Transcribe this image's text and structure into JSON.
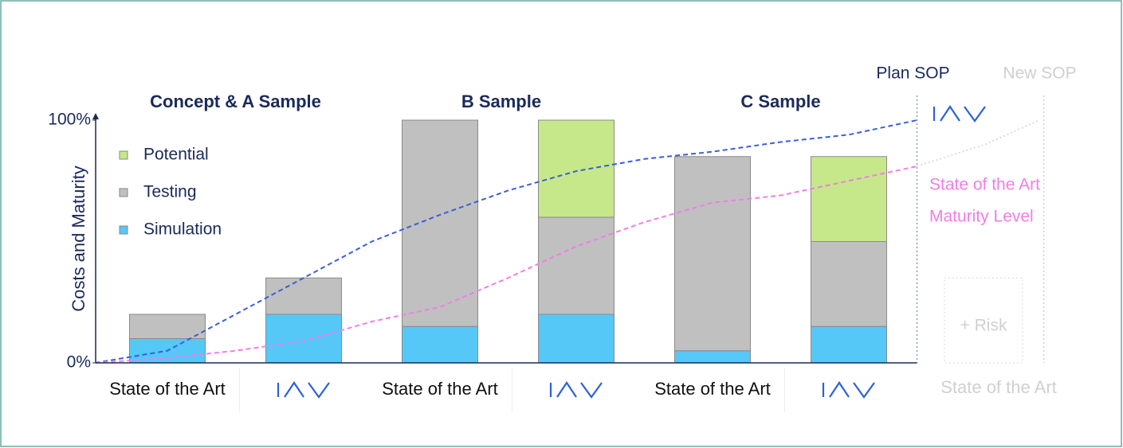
{
  "chart_data": {
    "type": "stacked_bar",
    "ylabel": "Costs and Maturity",
    "ylim": [
      0,
      100
    ],
    "yticks": [
      {
        "value": 0,
        "label": "0%"
      },
      {
        "value": 100,
        "label": "100%"
      }
    ],
    "categories": [
      "State of the Art",
      null,
      "State of the Art",
      null,
      "State of the Art",
      null
    ],
    "series": [
      {
        "name": "Simulation",
        "color": "#55c8f8",
        "values": [
          10,
          20,
          15,
          20,
          5,
          15
        ]
      },
      {
        "name": "Testing",
        "color": "#c0c0c0",
        "values": [
          10,
          15,
          85,
          40,
          80,
          35
        ]
      },
      {
        "name": "Potential",
        "color": "#c6e88a",
        "values": [
          null,
          null,
          null,
          40,
          null,
          35
        ]
      }
    ],
    "groups": [
      {
        "label": "Concept & A Sample",
        "x": 0.5
      },
      {
        "label": "B Sample",
        "x": 2.45
      },
      {
        "label": "C Sample",
        "x": 4.5
      }
    ],
    "lines": [
      {
        "color": "#3a5fd8",
        "x": [
          -0.53,
          0,
          0.5,
          1,
          1.5,
          2,
          2.5,
          3,
          3.5,
          4,
          4.5,
          5,
          5.5
        ],
        "values": [
          0,
          5,
          20,
          35,
          50,
          61,
          71,
          79,
          84,
          87,
          91,
          94,
          100
        ]
      },
      {
        "color": "#f27ce8",
        "x": [
          -0.53,
          0,
          0.5,
          1,
          1.5,
          2,
          2.5,
          3,
          3.5,
          4,
          4.5,
          5,
          5.5
        ],
        "values": [
          0,
          2,
          5,
          9,
          17,
          23,
          35,
          48,
          58,
          66,
          69,
          75,
          81
        ]
      },
      {
        "color": "#dddddd",
        "x": [
          5.5,
          6.0,
          6.4
        ],
        "values": [
          81,
          90,
          100
        ]
      }
    ],
    "markers": [
      {
        "label": "Plan SOP",
        "x": 5.5,
        "color": "#1a2a5a"
      },
      {
        "label": "New SOP",
        "x": 6.43,
        "color": "#cfcfcf"
      }
    ],
    "annotation": {
      "lines": [
        "State of the Art",
        "Maturity Level"
      ],
      "color": "#f27ce8"
    },
    "future": {
      "category": "State of the Art",
      "risk": "+ Risk"
    }
  }
}
